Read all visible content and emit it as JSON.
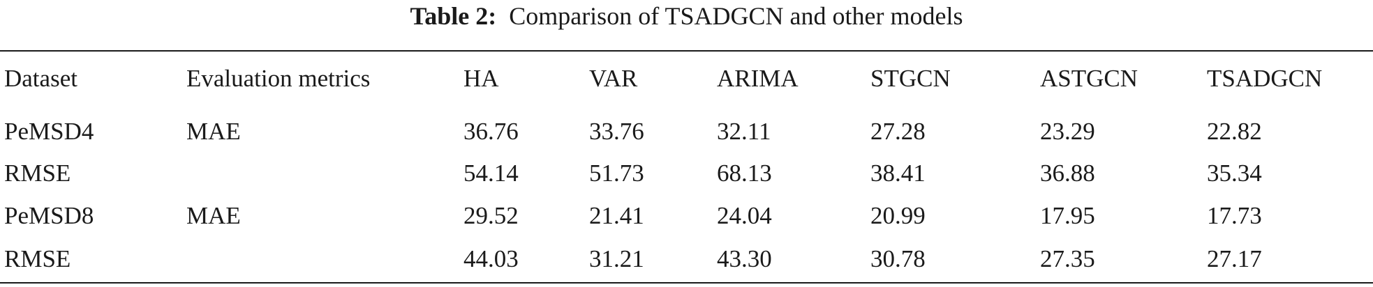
{
  "caption": {
    "label": "Table 2:",
    "title": "Comparison of TSADGCN and other models"
  },
  "table": {
    "header": [
      "Dataset",
      "Evaluation metrics",
      "HA",
      "VAR",
      "ARIMA",
      "STGCN",
      "ASTGCN",
      "TSADGCN"
    ],
    "rows": [
      {
        "dataset": "PeMSD4",
        "metric": "MAE",
        "values": [
          "36.76",
          "33.76",
          "32.11",
          "27.28",
          "23.29",
          "22.82"
        ]
      },
      {
        "dataset": "RMSE",
        "values": [
          "54.14",
          "51.73",
          "68.13",
          "38.41",
          "36.88",
          "35.34"
        ]
      },
      {
        "dataset": "PeMSD8",
        "metric": "MAE",
        "values": [
          "29.52",
          "21.41",
          "24.04",
          "20.99",
          "17.95",
          "17.73"
        ]
      },
      {
        "dataset": "RMSE",
        "values": [
          "44.03",
          "31.21",
          "43.30",
          "30.78",
          "27.35",
          "27.17"
        ]
      }
    ]
  }
}
